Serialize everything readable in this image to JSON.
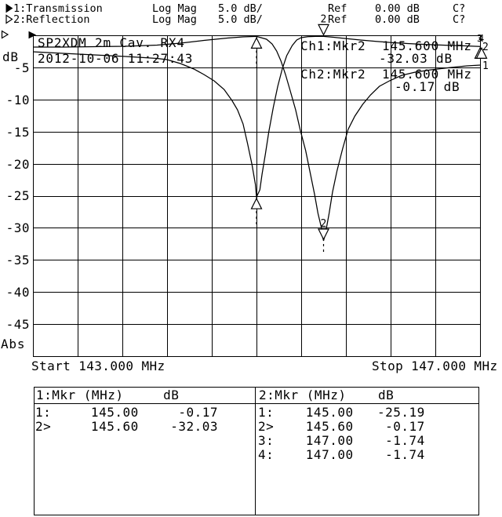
{
  "colors": {
    "fg": "#000000",
    "bg": "#ffffff"
  },
  "header": {
    "channels": [
      {
        "marker_icon": "filled-right-triangle",
        "label": "1:Transmission",
        "format": "Log Mag",
        "scale": "5.0 dB/",
        "ref_label": "Ref",
        "ref_value": "0.00 dB",
        "cal_status": "C?"
      },
      {
        "marker_icon": "open-right-triangle",
        "label": "2:Reflection",
        "format": "Log Mag",
        "scale": "5.0 dB/",
        "ref_label": "Ref",
        "ref_value": "0.00 dB",
        "cal_status": "C?"
      }
    ]
  },
  "plot": {
    "y_unit": "dB",
    "y_mode": "Abs",
    "y_ticks": [
      "-5",
      "-10",
      "-15",
      "-20",
      "-25",
      "-30",
      "-35",
      "-40",
      "-45"
    ],
    "annotation_line1": "SP2XDM 2m Cav. RX4",
    "annotation_line2": "2012-10-06 11:27:43",
    "readouts": [
      {
        "ch": "Ch1:Mkr2",
        "freq": "145.600 MHz",
        "value": "-32.03 dB"
      },
      {
        "ch": "Ch2:Mkr2",
        "freq": "145.600 MHz",
        "value": "-0.17 dB"
      }
    ],
    "start_label": "Start 143.000 MHz",
    "stop_label": "Stop 147.000 MHz"
  },
  "marker_tables": [
    {
      "header": "1:Mkr (MHz)     dB",
      "rows": [
        "1:     145.00     -0.17",
        "2>     145.60    -32.03"
      ]
    },
    {
      "header": "2:Mkr (MHz)    dB",
      "rows": [
        "1:    145.00   -25.19",
        "2>    145.60    -0.17",
        "3:    147.00    -1.74",
        "4:    147.00    -1.74"
      ]
    }
  ],
  "chart_data": {
    "type": "line",
    "title": "SP2XDM 2m Cav. RX4",
    "timestamp": "2012-10-06 11:27:43",
    "grid": {
      "x_divisions": 10,
      "y_divisions": 10
    },
    "x_axis": {
      "label": "MHz",
      "start": 143.0,
      "stop": 147.0
    },
    "y_axis": {
      "label": "dB",
      "mode": "Abs",
      "max": 0,
      "min": -50,
      "db_per_div": 5.0
    },
    "series": [
      {
        "name": "Transmission",
        "channel": 1,
        "end_label": "1",
        "points": [
          [
            143.0,
            -1.83
          ],
          [
            143.27,
            -1.83
          ],
          [
            143.55,
            -1.77
          ],
          [
            143.83,
            -1.71
          ],
          [
            144.11,
            -1.53
          ],
          [
            144.32,
            -1.22
          ],
          [
            144.53,
            -0.79
          ],
          [
            144.74,
            -0.43
          ],
          [
            144.88,
            -0.24
          ],
          [
            145.0,
            -0.17
          ],
          [
            145.09,
            -0.61
          ],
          [
            145.14,
            -1.34
          ],
          [
            145.18,
            -2.44
          ],
          [
            145.22,
            -4.03
          ],
          [
            145.26,
            -6.11
          ],
          [
            145.3,
            -8.56
          ],
          [
            145.35,
            -11.61
          ],
          [
            145.39,
            -14.67
          ],
          [
            145.44,
            -17.97
          ],
          [
            145.48,
            -21.39
          ],
          [
            145.52,
            -24.82
          ],
          [
            145.55,
            -27.75
          ],
          [
            145.58,
            -29.95
          ],
          [
            145.59,
            -31.3
          ],
          [
            145.6,
            -32.03
          ],
          [
            145.62,
            -30.56
          ],
          [
            145.65,
            -27.75
          ],
          [
            145.68,
            -24.45
          ],
          [
            145.72,
            -21.15
          ],
          [
            145.77,
            -17.73
          ],
          [
            145.82,
            -14.67
          ],
          [
            145.88,
            -12.59
          ],
          [
            145.95,
            -10.76
          ],
          [
            146.02,
            -9.29
          ],
          [
            146.1,
            -7.95
          ],
          [
            146.19,
            -7.09
          ],
          [
            146.3,
            -6.23
          ],
          [
            146.42,
            -5.75
          ],
          [
            146.56,
            -5.38
          ],
          [
            146.74,
            -5.01
          ],
          [
            146.88,
            -4.77
          ],
          [
            147.0,
            -4.65
          ]
        ]
      },
      {
        "name": "Reflection",
        "channel": 2,
        "end_label": "2",
        "points": [
          [
            143.0,
            -2.57
          ],
          [
            143.2,
            -2.75
          ],
          [
            143.41,
            -2.93
          ],
          [
            143.62,
            -3.12
          ],
          [
            143.83,
            -3.3
          ],
          [
            144.0,
            -3.48
          ],
          [
            144.11,
            -3.61
          ],
          [
            144.2,
            -3.79
          ],
          [
            144.32,
            -4.4
          ],
          [
            144.44,
            -5.26
          ],
          [
            144.53,
            -6.11
          ],
          [
            144.62,
            -7.09
          ],
          [
            144.71,
            -8.43
          ],
          [
            144.78,
            -10.15
          ],
          [
            144.83,
            -11.61
          ],
          [
            144.88,
            -13.81
          ],
          [
            144.92,
            -16.87
          ],
          [
            144.96,
            -20.17
          ],
          [
            144.99,
            -23.23
          ],
          [
            145.0,
            -25.19
          ],
          [
            145.03,
            -24.08
          ],
          [
            145.05,
            -21.64
          ],
          [
            145.08,
            -18.46
          ],
          [
            145.11,
            -15.04
          ],
          [
            145.15,
            -11.25
          ],
          [
            145.19,
            -7.95
          ],
          [
            145.23,
            -5.26
          ],
          [
            145.27,
            -3.18
          ],
          [
            145.32,
            -1.59
          ],
          [
            145.36,
            -0.73
          ],
          [
            145.4,
            -0.37
          ],
          [
            145.46,
            -0.22
          ],
          [
            145.53,
            -0.17
          ],
          [
            145.6,
            -0.17
          ],
          [
            145.69,
            -0.31
          ],
          [
            145.79,
            -0.49
          ],
          [
            145.93,
            -0.73
          ],
          [
            146.07,
            -0.95
          ],
          [
            146.21,
            -1.12
          ],
          [
            146.35,
            -1.28
          ],
          [
            146.53,
            -1.44
          ],
          [
            146.71,
            -1.56
          ],
          [
            146.85,
            -1.64
          ],
          [
            147.0,
            -1.74
          ]
        ]
      }
    ],
    "markers": [
      {
        "channel": 1,
        "n": "1",
        "mhz": 145.0,
        "db": -0.17,
        "active": false,
        "stem": true,
        "show_label": false
      },
      {
        "channel": 1,
        "n": "2",
        "mhz": 145.6,
        "db": -32.03,
        "active": true,
        "stem": true,
        "show_label": true
      },
      {
        "channel": 2,
        "n": "1",
        "mhz": 145.0,
        "db": -25.19,
        "active": false,
        "stem": true,
        "show_label": false
      },
      {
        "channel": 2,
        "n": "2",
        "mhz": 145.6,
        "db": -0.17,
        "active": true,
        "stem": false,
        "show_label": true
      },
      {
        "channel": 2,
        "n": "3",
        "mhz": 147.0,
        "db": -1.74,
        "active": false,
        "stem": false,
        "show_label": true
      },
      {
        "channel": 2,
        "n": "4",
        "mhz": 147.0,
        "db": -1.74,
        "active": false,
        "stem": false,
        "show_label": true
      }
    ],
    "ref_markers": [
      {
        "channel": 1,
        "style": "filled",
        "db": 0.0
      },
      {
        "channel": 2,
        "style": "open",
        "db": 0.0
      }
    ]
  }
}
